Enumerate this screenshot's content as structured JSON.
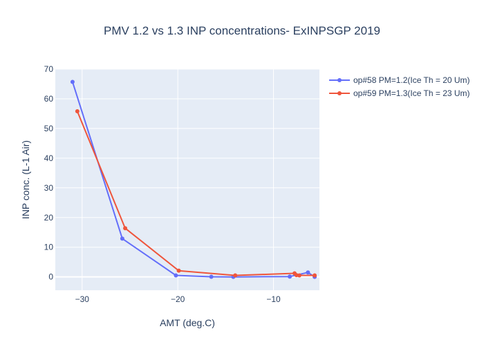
{
  "chart_data": {
    "type": "line",
    "title": "PMV 1.2 vs 1.3 INP concentrations- ExINPSGP 2019",
    "xlabel": "AMT (deg.C)",
    "ylabel": "INP conc. (L-1 Air)",
    "xlim": [
      -32.8,
      -5.2
    ],
    "ylim": [
      -4.5,
      70
    ],
    "xticks": [
      -30,
      -20,
      -10
    ],
    "xtick_labels": [
      "−30",
      "−20",
      "−10"
    ],
    "yticks": [
      0,
      10,
      20,
      30,
      40,
      50,
      60,
      70
    ],
    "ytick_labels": [
      "0",
      "10",
      "20",
      "30",
      "40",
      "50",
      "60",
      "70"
    ],
    "grid": true,
    "legend_position": "top-right-outside",
    "series": [
      {
        "name": "op#58 PM=1.2(Ice Th = 20 Um)",
        "color": "#636efa",
        "x": [
          -31.0,
          -25.8,
          -20.2,
          -16.5,
          -14.2,
          -8.3,
          -6.4,
          -5.7
        ],
        "y": [
          65.7,
          12.9,
          0.5,
          0.05,
          0.0,
          0.1,
          1.5,
          0.0
        ]
      },
      {
        "name": "op#59 PM=1.3(Ice Th = 23 Um)",
        "color": "#ef553b",
        "x": [
          -30.5,
          -25.5,
          -19.9,
          -14.0,
          -7.8,
          -7.6,
          -7.3,
          -5.7
        ],
        "y": [
          55.8,
          16.4,
          2.1,
          0.5,
          1.2,
          0.6,
          0.5,
          0.5
        ]
      }
    ]
  }
}
